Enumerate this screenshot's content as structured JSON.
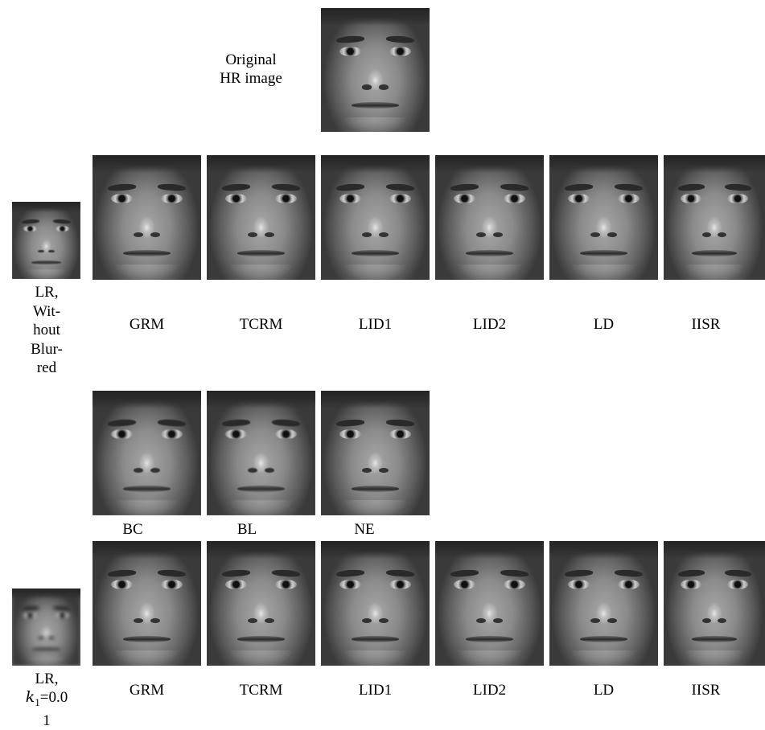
{
  "original": {
    "caption_line1": "Original",
    "caption_line2": "HR image"
  },
  "row1": {
    "lr_label_lines": [
      "LR,",
      "Wit-",
      "hout",
      "Blur-",
      "red"
    ],
    "methods": [
      "GRM",
      "TCRM",
      "LID1",
      "LID2",
      "LD",
      "IISR"
    ]
  },
  "row2": {
    "methods": [
      "BC",
      "BL",
      "NE"
    ]
  },
  "row3": {
    "lr_label_line1": "LR,",
    "lr_label_k": "k",
    "lr_label_sub": "1",
    "lr_label_eq": "=0.0",
    "lr_label_line3": "1",
    "methods": [
      "GRM",
      "TCRM",
      "LID1",
      "LID2",
      "LD",
      "IISR"
    ]
  }
}
